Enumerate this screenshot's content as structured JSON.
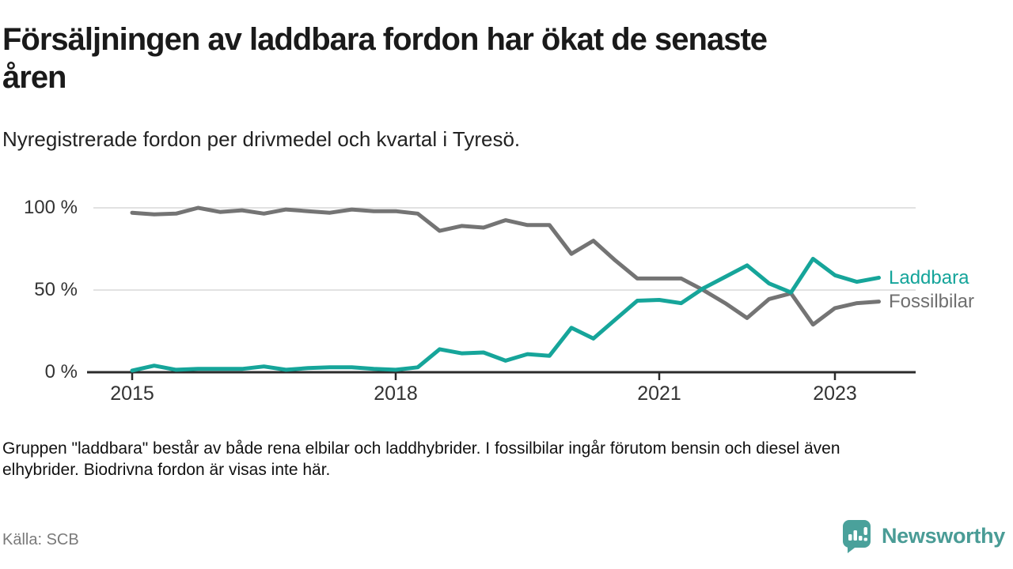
{
  "header": {
    "title_line1": "Försäljningen av laddbara fordon har ökat de senaste",
    "title_line2": "åren",
    "subtitle": "Nyregistrerade fordon per drivmedel och kvartal i Tyresö."
  },
  "chart_data": {
    "type": "line",
    "x_unit": "quarter",
    "x_start": "2015 Q1",
    "x_end": "2023 Q3",
    "ylim": [
      0,
      100
    ],
    "grid": "horizontal",
    "yticks": [
      {
        "label": "100 %",
        "value": 100
      },
      {
        "label": "50 %",
        "value": 50
      },
      {
        "label": "0 %",
        "value": 0
      }
    ],
    "xticks": [
      {
        "label": "2015",
        "quarter_index": 0
      },
      {
        "label": "2018",
        "quarter_index": 12
      },
      {
        "label": "2021",
        "quarter_index": 24
      },
      {
        "label": "2023",
        "quarter_index": 32
      }
    ],
    "legend_position": "end-of-line-right",
    "series": [
      {
        "name": "Fossilbilar",
        "color": "#747474",
        "values": [
          97,
          96,
          96.5,
          100,
          97.5,
          98.5,
          96.5,
          99,
          98,
          97,
          99,
          98,
          98,
          96.5,
          86,
          89,
          88,
          92.5,
          89.5,
          89.5,
          72,
          80,
          68,
          57,
          57,
          57,
          50,
          42,
          33,
          44.5,
          48,
          29,
          39,
          42,
          43
        ]
      },
      {
        "name": "Laddbara",
        "color": "#16a59a",
        "values": [
          1,
          4,
          1.5,
          2,
          2,
          2,
          3.5,
          1.5,
          2.5,
          3,
          3,
          2,
          1.5,
          3,
          14,
          11.5,
          12,
          7,
          11,
          10,
          27,
          20.5,
          32,
          43.5,
          44,
          42,
          51,
          58,
          65,
          54,
          48.5,
          69,
          59,
          55,
          57.5
        ]
      }
    ]
  },
  "footer": {
    "note_line1": "Gruppen \"laddbara\" består av både rena elbilar och laddhybrider. I fossilbilar ingår förutom bensin och diesel även",
    "note_line2": "elhybrider. Biodrivna fordon är visas inte här.",
    "source": "Källa: SCB",
    "brand": "Newsworthy"
  },
  "colors": {
    "laddbara": "#16a59a",
    "fossilbilar": "#747474",
    "gridline": "#d9d9d9",
    "axis": "#2b2b2b",
    "brand_teal": "#4aa19b"
  }
}
